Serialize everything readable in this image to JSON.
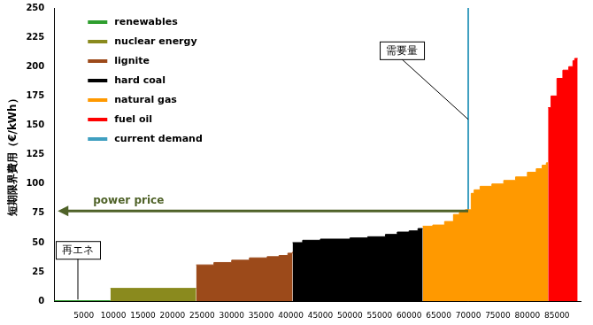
{
  "chart_data": {
    "type": "line",
    "y_label": "短期限界費用（€/kWh）",
    "xlim": [
      0,
      89000
    ],
    "xticks": [
      5000,
      10000,
      15000,
      20000,
      25000,
      30000,
      35000,
      40000,
      45000,
      50000,
      55000,
      60000,
      65000,
      70000,
      75000,
      80000,
      85000
    ],
    "ylim": [
      0,
      250
    ],
    "yticks": [
      0,
      25,
      50,
      75,
      100,
      125,
      150,
      175,
      200,
      225,
      250
    ],
    "grid": false,
    "legend": "upper left",
    "series": [
      {
        "name": "renewables",
        "color": "#2e9e2e",
        "type": "step",
        "x": [
          0,
          9500
        ],
        "values": [
          0.5,
          0.5
        ]
      },
      {
        "name": "nuclear energy",
        "color": "#8a8a1e",
        "type": "step",
        "x": [
          9500,
          24000
        ],
        "values": [
          11,
          11
        ]
      },
      {
        "name": "lignite",
        "color": "#9c4a1a",
        "type": "step",
        "x": [
          24000,
          27000,
          30000,
          33000,
          36000,
          38000,
          39500,
          40300
        ],
        "values": [
          31,
          33,
          35,
          37,
          38,
          39,
          41,
          42
        ]
      },
      {
        "name": "hard coal",
        "color": "#000000",
        "type": "step",
        "x": [
          40300,
          42000,
          45000,
          50000,
          53000,
          56000,
          58000,
          60000,
          61500,
          62300
        ],
        "values": [
          50,
          52,
          53,
          54,
          55,
          57,
          59,
          60,
          62,
          62
        ]
      },
      {
        "name": "natural gas",
        "color": "#ff9900",
        "type": "step",
        "x": [
          62300,
          64000,
          66000,
          67500,
          68500,
          69500,
          70500,
          71000,
          72000,
          74000,
          76000,
          78000,
          80000,
          81500,
          82500,
          83200,
          83500
        ],
        "values": [
          64,
          65,
          68,
          74,
          76,
          78,
          92,
          95,
          98,
          100,
          103,
          106,
          110,
          113,
          116,
          118,
          118
        ]
      },
      {
        "name": "fuel oil",
        "color": "#ff0000",
        "type": "step",
        "x": [
          83500,
          84000,
          85000,
          86000,
          87000,
          87700,
          88000,
          88500
        ],
        "values": [
          165,
          175,
          190,
          197,
          200,
          205,
          207,
          207
        ]
      },
      {
        "name": "current demand",
        "color": "#3f9fc0",
        "type": "line",
        "x": [
          70000,
          70000
        ],
        "values": [
          0,
          250
        ]
      }
    ],
    "annotations": [
      {
        "text": "power price",
        "x": 70000,
        "y": 77
      },
      {
        "text": "需要量",
        "x": 70000,
        "y": 155
      },
      {
        "text": "再エネ",
        "x": 4000,
        "y": 0
      }
    ]
  }
}
